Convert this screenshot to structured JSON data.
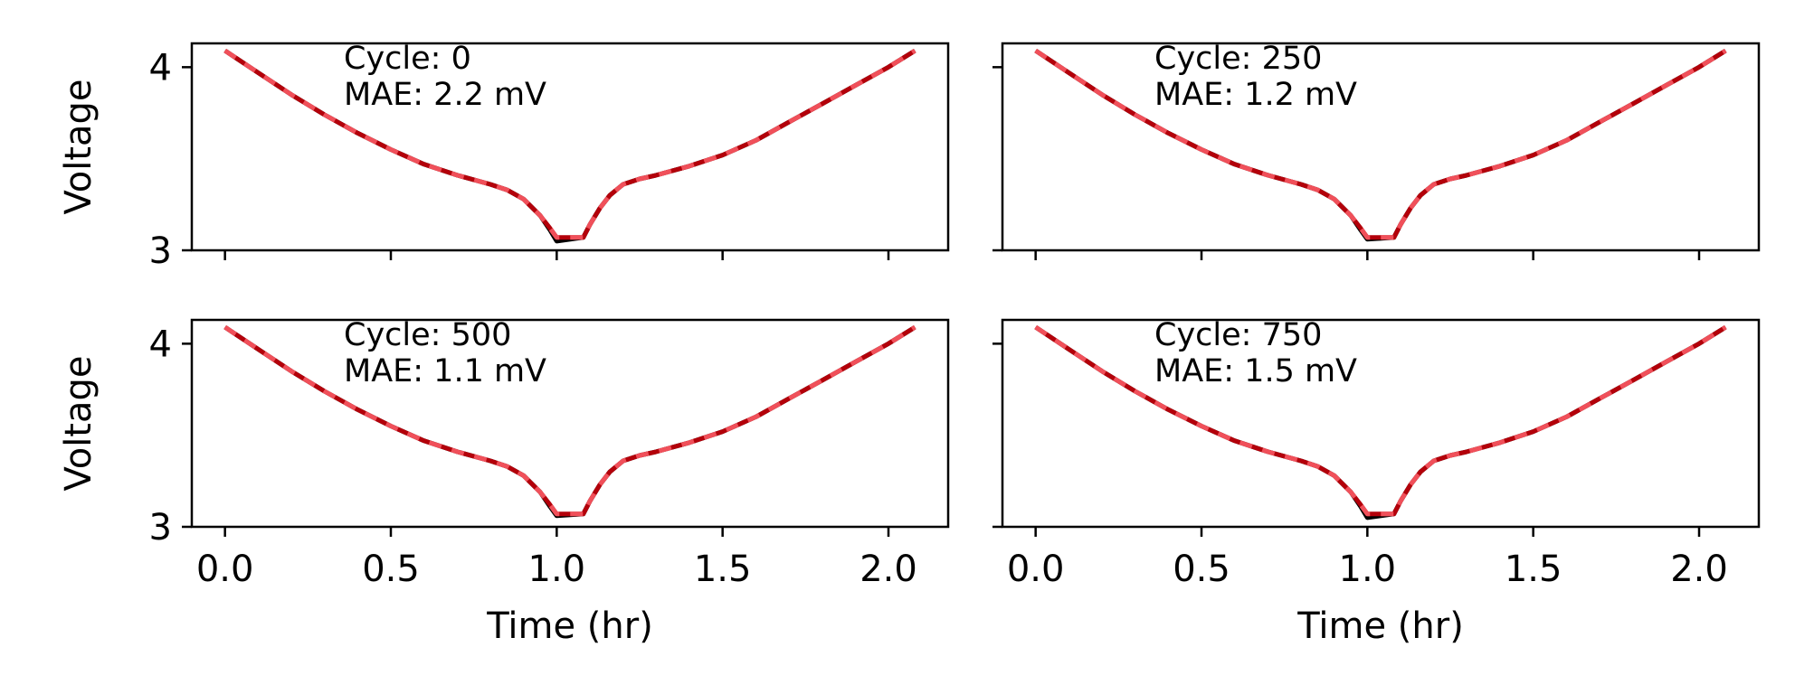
{
  "colors": {
    "measured": "#000000",
    "mid": "#b3000a",
    "predicted": "#f0505a"
  },
  "chart_data": [
    {
      "type": "line",
      "xlabel": "",
      "ylabel": "Voltage",
      "xlim": [
        -0.1,
        2.18
      ],
      "ylim": [
        3.0,
        4.13
      ],
      "xticks": [
        "0.0",
        "0.5",
        "1.0",
        "1.5",
        "2.0"
      ],
      "yticks": [
        "3",
        "4"
      ],
      "annotation": {
        "cycle": "Cycle: 0",
        "mae": "MAE: 2.2 mV"
      },
      "x": [
        0.0,
        0.1,
        0.2,
        0.3,
        0.4,
        0.5,
        0.6,
        0.7,
        0.8,
        0.85,
        0.9,
        0.95,
        0.98,
        1.0,
        1.08,
        1.1,
        1.13,
        1.16,
        1.2,
        1.25,
        1.3,
        1.4,
        1.5,
        1.6,
        1.7,
        1.8,
        1.9,
        2.0,
        2.08
      ],
      "series": [
        {
          "values": [
            4.09,
            3.97,
            3.85,
            3.74,
            3.64,
            3.55,
            3.47,
            3.41,
            3.36,
            3.33,
            3.28,
            3.19,
            3.11,
            3.05,
            3.07,
            3.14,
            3.23,
            3.3,
            3.36,
            3.39,
            3.41,
            3.46,
            3.52,
            3.6,
            3.7,
            3.8,
            3.9,
            4.0,
            4.09
          ]
        },
        {
          "values": [
            4.09,
            3.97,
            3.85,
            3.74,
            3.64,
            3.55,
            3.47,
            3.41,
            3.36,
            3.33,
            3.28,
            3.19,
            3.12,
            3.07,
            3.07,
            3.14,
            3.23,
            3.3,
            3.36,
            3.39,
            3.41,
            3.46,
            3.52,
            3.6,
            3.7,
            3.8,
            3.9,
            4.0,
            4.09
          ]
        }
      ]
    },
    {
      "type": "line",
      "xlabel": "",
      "ylabel": "",
      "xlim": [
        -0.1,
        2.18
      ],
      "ylim": [
        3.0,
        4.13
      ],
      "xticks": [
        "0.0",
        "0.5",
        "1.0",
        "1.5",
        "2.0"
      ],
      "yticks": [
        "",
        ""
      ],
      "annotation": {
        "cycle": "Cycle: 250",
        "mae": "MAE: 1.2 mV"
      },
      "x": [
        0.0,
        0.1,
        0.2,
        0.3,
        0.4,
        0.5,
        0.6,
        0.7,
        0.8,
        0.85,
        0.9,
        0.95,
        0.98,
        1.0,
        1.08,
        1.1,
        1.13,
        1.16,
        1.2,
        1.25,
        1.3,
        1.4,
        1.5,
        1.6,
        1.7,
        1.8,
        1.9,
        2.0,
        2.08
      ],
      "series": [
        {
          "values": [
            4.09,
            3.97,
            3.85,
            3.74,
            3.64,
            3.55,
            3.47,
            3.41,
            3.36,
            3.33,
            3.28,
            3.19,
            3.11,
            3.06,
            3.07,
            3.14,
            3.23,
            3.3,
            3.36,
            3.39,
            3.41,
            3.46,
            3.52,
            3.6,
            3.7,
            3.8,
            3.9,
            4.0,
            4.09
          ]
        },
        {
          "values": [
            4.09,
            3.97,
            3.85,
            3.74,
            3.64,
            3.55,
            3.47,
            3.41,
            3.36,
            3.33,
            3.28,
            3.19,
            3.12,
            3.07,
            3.07,
            3.14,
            3.23,
            3.3,
            3.36,
            3.39,
            3.41,
            3.46,
            3.52,
            3.6,
            3.7,
            3.8,
            3.9,
            4.0,
            4.09
          ]
        }
      ]
    },
    {
      "type": "line",
      "xlabel": "Time (hr)",
      "ylabel": "Voltage",
      "xlim": [
        -0.1,
        2.18
      ],
      "ylim": [
        3.0,
        4.13
      ],
      "xticks": [
        "0.0",
        "0.5",
        "1.0",
        "1.5",
        "2.0"
      ],
      "yticks": [
        "3",
        "4"
      ],
      "annotation": {
        "cycle": "Cycle: 500",
        "mae": "MAE: 1.1 mV"
      },
      "x": [
        0.0,
        0.1,
        0.2,
        0.3,
        0.4,
        0.5,
        0.6,
        0.7,
        0.8,
        0.85,
        0.9,
        0.95,
        0.98,
        1.0,
        1.08,
        1.1,
        1.13,
        1.16,
        1.2,
        1.25,
        1.3,
        1.4,
        1.5,
        1.6,
        1.7,
        1.8,
        1.9,
        2.0,
        2.08
      ],
      "series": [
        {
          "values": [
            4.09,
            3.97,
            3.85,
            3.74,
            3.64,
            3.55,
            3.47,
            3.41,
            3.36,
            3.33,
            3.28,
            3.19,
            3.11,
            3.06,
            3.07,
            3.14,
            3.23,
            3.3,
            3.36,
            3.39,
            3.41,
            3.46,
            3.52,
            3.6,
            3.7,
            3.8,
            3.9,
            4.0,
            4.09
          ]
        },
        {
          "values": [
            4.09,
            3.97,
            3.85,
            3.74,
            3.64,
            3.55,
            3.47,
            3.41,
            3.36,
            3.33,
            3.28,
            3.19,
            3.12,
            3.07,
            3.07,
            3.14,
            3.23,
            3.3,
            3.36,
            3.39,
            3.41,
            3.46,
            3.52,
            3.6,
            3.7,
            3.8,
            3.9,
            4.0,
            4.09
          ]
        }
      ]
    },
    {
      "type": "line",
      "xlabel": "Time (hr)",
      "ylabel": "",
      "xlim": [
        -0.1,
        2.18
      ],
      "ylim": [
        3.0,
        4.13
      ],
      "xticks": [
        "0.0",
        "0.5",
        "1.0",
        "1.5",
        "2.0"
      ],
      "yticks": [
        "",
        ""
      ],
      "annotation": {
        "cycle": "Cycle: 750",
        "mae": "MAE: 1.5 mV"
      },
      "x": [
        0.0,
        0.1,
        0.2,
        0.3,
        0.4,
        0.5,
        0.6,
        0.7,
        0.8,
        0.85,
        0.9,
        0.95,
        0.98,
        1.0,
        1.08,
        1.1,
        1.13,
        1.16,
        1.2,
        1.25,
        1.3,
        1.4,
        1.5,
        1.6,
        1.7,
        1.8,
        1.9,
        2.0,
        2.08
      ],
      "series": [
        {
          "values": [
            4.09,
            3.97,
            3.85,
            3.74,
            3.64,
            3.55,
            3.47,
            3.41,
            3.36,
            3.33,
            3.28,
            3.19,
            3.11,
            3.05,
            3.07,
            3.14,
            3.23,
            3.3,
            3.36,
            3.39,
            3.41,
            3.46,
            3.52,
            3.6,
            3.7,
            3.8,
            3.9,
            4.0,
            4.09
          ]
        },
        {
          "values": [
            4.09,
            3.97,
            3.85,
            3.74,
            3.64,
            3.55,
            3.47,
            3.41,
            3.36,
            3.33,
            3.28,
            3.19,
            3.12,
            3.07,
            3.07,
            3.14,
            3.23,
            3.3,
            3.36,
            3.39,
            3.41,
            3.46,
            3.52,
            3.6,
            3.7,
            3.8,
            3.9,
            4.0,
            4.09
          ]
        }
      ]
    }
  ]
}
